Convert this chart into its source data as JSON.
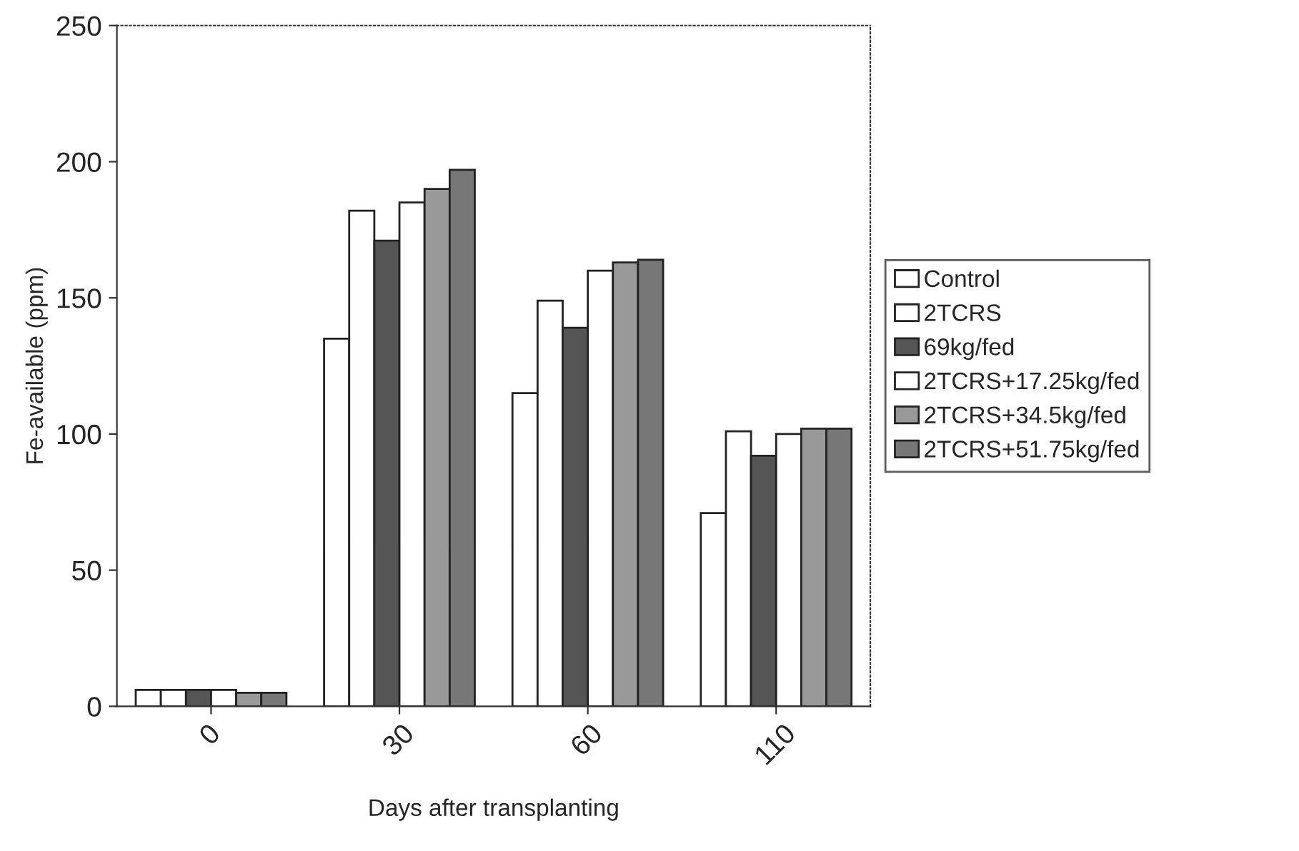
{
  "chart_data": {
    "type": "bar",
    "xlabel": "Days after transplanting",
    "ylabel": "Fe-available (ppm)",
    "categories": [
      "0",
      "30",
      "60",
      "110"
    ],
    "series": [
      {
        "name": "Control",
        "color": "#ffffff",
        "values": [
          6,
          135,
          115,
          71
        ]
      },
      {
        "name": "2TCRS",
        "color": "#ffffff",
        "values": [
          6,
          182,
          149,
          101
        ]
      },
      {
        "name": "69kg/fed",
        "color": "#555555",
        "values": [
          6,
          171,
          139,
          92
        ]
      },
      {
        "name": "2TCRS+17.25kg/fed",
        "color": "#ffffff",
        "values": [
          6,
          185,
          160,
          100
        ]
      },
      {
        "name": "2TCRS+34.5kg/fed",
        "color": "#999999",
        "values": [
          5,
          190,
          163,
          102
        ]
      },
      {
        "name": "2TCRS+51.75kg/fed",
        "color": "#777777",
        "values": [
          5,
          197,
          164,
          102
        ]
      }
    ],
    "ylim": [
      0,
      250
    ],
    "yticks": [
      0,
      50,
      100,
      150,
      200,
      250
    ],
    "grid": false,
    "legend": "right"
  }
}
